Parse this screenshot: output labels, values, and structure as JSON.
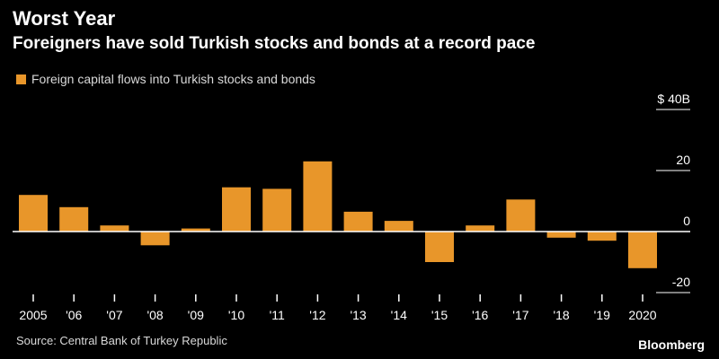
{
  "title": "Worst Year",
  "subtitle": "Foreigners have sold Turkish stocks and bonds at a record pace",
  "source": "Source: Central Bank of Turkey Republic",
  "brand": "Bloomberg",
  "colors": {
    "background": "#000000",
    "bar": "#e8962a",
    "axis": "#ffffff",
    "gridline": "#ffffff"
  },
  "chart_data": {
    "type": "bar",
    "categories": [
      "2005",
      "'06",
      "'07",
      "'08",
      "'09",
      "'10",
      "'11",
      "'12",
      "'13",
      "'14",
      "'15",
      "'16",
      "'17",
      "'18",
      "'19",
      "2020"
    ],
    "series": [
      {
        "name": "Foreign capital flows into Turkish stocks and bonds",
        "values": [
          12,
          8,
          2,
          -4.5,
          1,
          14.5,
          14,
          23,
          6.5,
          3.5,
          -10,
          2,
          10.5,
          -2,
          -3,
          -12
        ]
      }
    ],
    "ylim": [
      -20,
      40
    ],
    "yticks": [
      {
        "value": 40,
        "label": "$ 40B"
      },
      {
        "value": 20,
        "label": "20"
      },
      {
        "value": 0,
        "label": "0"
      },
      {
        "value": -20,
        "label": "-20"
      }
    ],
    "grid": true,
    "legend": "top-left",
    "yaxis_position": "right"
  }
}
